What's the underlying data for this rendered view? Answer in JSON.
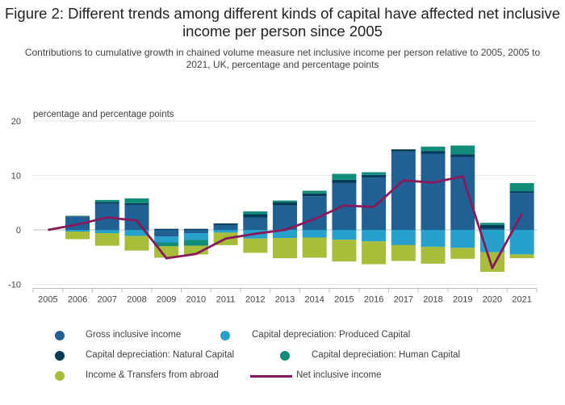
{
  "title": "Figure 2: Different trends among different kinds of capital have affected net inclusive income per person since 2005",
  "subtitle": "Contributions to cumulative growth in chained volume measure net inclusive income per person relative to 2005, 2005 to 2021, UK, percentage and percentage points",
  "chart_data": {
    "type": "bar",
    "stacked": true,
    "ylabel": "percentage and percentage points",
    "ylim": [
      -10,
      20
    ],
    "yticks": [
      -10,
      0,
      10,
      20
    ],
    "grid": true,
    "legend_position": "bottom",
    "categories": [
      "2005",
      "2006",
      "2007",
      "2008",
      "2009",
      "2010",
      "2011",
      "2012",
      "2013",
      "2014",
      "2015",
      "2016",
      "2017",
      "2018",
      "2019",
      "2020",
      "2021"
    ],
    "series": [
      {
        "name": "Gross inclusive income",
        "color": "#206095",
        "values": [
          0,
          2.4,
          4.8,
          4.6,
          -1.2,
          -0.6,
          0.9,
          2.3,
          4.5,
          6.2,
          8.6,
          9.6,
          14.4,
          14.0,
          13.4,
          0.2,
          6.8
        ]
      },
      {
        "name": "Capital depreciation: Produced Capital",
        "color": "#27a0cc",
        "values": [
          0,
          -0.3,
          -0.6,
          -1.1,
          -1.1,
          -1.2,
          -0.5,
          -1.6,
          -1.5,
          -1.4,
          -1.8,
          -2.1,
          -2.7,
          -3.1,
          -3.3,
          -4.1,
          -4.5
        ]
      },
      {
        "name": "Capital depreciation: Natural Capital",
        "color": "#003c57",
        "values": [
          0,
          0.1,
          0.3,
          0.3,
          0.2,
          0.2,
          0.3,
          0.6,
          0.6,
          0.5,
          0.6,
          0.5,
          0.4,
          0.5,
          0.5,
          0.7,
          0.3
        ]
      },
      {
        "name": "Capital depreciation: Human Capital",
        "color": "#118c7b",
        "values": [
          0,
          0.1,
          0.4,
          0.9,
          -0.7,
          -1.1,
          0.0,
          0.5,
          0.3,
          0.5,
          1.1,
          0.5,
          -0.1,
          0.8,
          1.6,
          0.4,
          1.5
        ]
      },
      {
        "name": "Income & Transfers from abroad",
        "color": "#a8bd3a",
        "values": [
          0,
          -1.4,
          -2.3,
          -2.7,
          -2.1,
          -1.6,
          -2.3,
          -2.6,
          -3.7,
          -3.7,
          -4.0,
          -4.2,
          -2.9,
          -3.1,
          -2.0,
          -3.6,
          -0.7
        ]
      }
    ],
    "line": {
      "name": "Net inclusive income",
      "color": "#871a5b",
      "values": [
        0,
        1.0,
        2.3,
        1.7,
        -5.2,
        -4.4,
        -1.6,
        -0.7,
        0.0,
        2.0,
        4.5,
        4.2,
        9.1,
        8.7,
        9.8,
        -7.0,
        3.0
      ]
    }
  }
}
